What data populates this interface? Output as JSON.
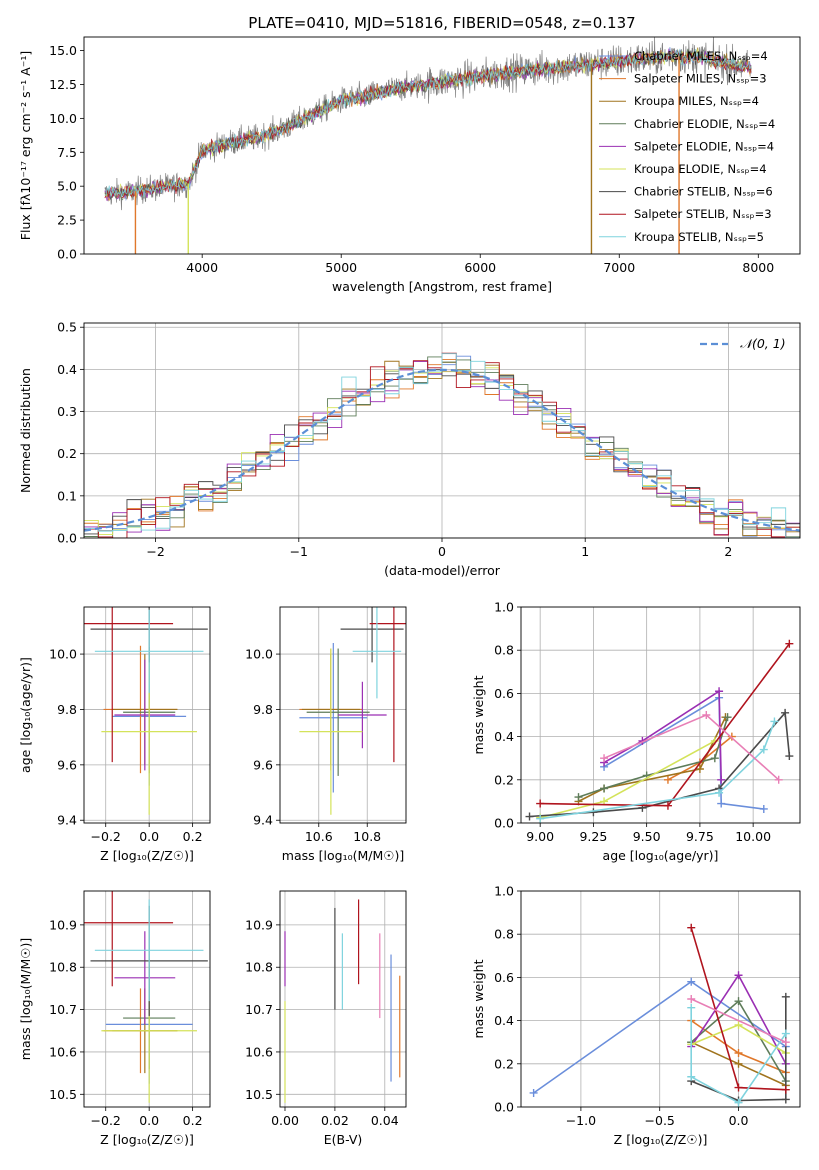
{
  "title": "PLATE=0410, MJD=51816, FIBERID=0548, z=0.137",
  "colors": [
    "#6a8edb",
    "#e0782b",
    "#a0741e",
    "#5e7c59",
    "#9a2fb3",
    "#d4e35a",
    "#4a4a4a",
    "#b0141e",
    "#7fd3de"
  ],
  "extra_colors": {
    "pink": "#e87fb6",
    "gray": "#7f7f7f",
    "dashed": "#5b8fd6"
  },
  "chart_data": [
    {
      "id": "spectrum",
      "type": "line",
      "xlabel": "wavelength [Angstrom, rest frame]",
      "ylabel": "Flux [fλ10⁻¹⁷ erg cm⁻² s⁻¹ A⁻¹]",
      "xlim": [
        3150,
        8300
      ],
      "ylim": [
        0,
        16
      ],
      "xticks": [
        4000,
        5000,
        6000,
        7000,
        8000
      ],
      "yticks": [
        0.0,
        2.5,
        5.0,
        7.5,
        10.0,
        12.5,
        15.0
      ],
      "grid": false,
      "legend_position": "top-right",
      "legend": [
        "Chabrier MILES, Nₛₛₚ=4",
        "Salpeter MILES, Nₛₛₚ=3",
        "Kroupa MILES, Nₛₛₚ=4",
        "Chabrier ELODIE, Nₛₛₚ=4",
        "Salpeter ELODIE, Nₛₛₚ=4",
        "Kroupa ELODIE, Nₛₛₚ=4",
        "Chabrier STELIB, Nₛₛₚ=6",
        "Salpeter STELIB, Nₛₛₚ=3",
        "Kroupa STELIB, Nₛₛₚ=5"
      ],
      "data_continuum": [
        [
          3300,
          4.4
        ],
        [
          3500,
          4.6
        ],
        [
          3700,
          4.9
        ],
        [
          3900,
          5.2
        ],
        [
          4000,
          7.6
        ],
        [
          4200,
          8.2
        ],
        [
          4400,
          8.6
        ],
        [
          4600,
          9.3
        ],
        [
          4800,
          10.3
        ],
        [
          5000,
          11.3
        ],
        [
          5200,
          11.7
        ],
        [
          5400,
          12.2
        ],
        [
          5600,
          12.5
        ],
        [
          5800,
          12.8
        ],
        [
          6000,
          13.1
        ],
        [
          6200,
          13.4
        ],
        [
          6400,
          13.6
        ],
        [
          6600,
          13.8
        ],
        [
          6800,
          14.0
        ],
        [
          7000,
          14.2
        ],
        [
          7200,
          14.4
        ],
        [
          7400,
          14.6
        ],
        [
          7600,
          14.5
        ],
        [
          7800,
          14.0
        ],
        [
          7950,
          13.7
        ]
      ],
      "vertical_drops": [
        {
          "x": 3520,
          "color_index": 1
        },
        {
          "x": 3900,
          "color_index": 5
        },
        {
          "x": 6800,
          "color_index": 2
        },
        {
          "x": 7430,
          "color_index": 1
        }
      ]
    },
    {
      "id": "residuals",
      "type": "histogram",
      "xlabel": "(data-model)/error",
      "ylabel": "Normed distribution",
      "xlim": [
        -2.5,
        2.5
      ],
      "ylim": [
        0,
        0.51
      ],
      "xticks": [
        -2,
        -1,
        0,
        1,
        2
      ],
      "xtick_labels": [
        "−2",
        "−1",
        "0",
        "1",
        "2"
      ],
      "yticks": [
        0.0,
        0.1,
        0.2,
        0.3,
        0.4,
        0.5
      ],
      "grid": true,
      "legend_position": "top-right",
      "reference_curve": {
        "name": "𝒩(0, 1)",
        "mean": 0,
        "sigma": 1
      },
      "bin_width": 0.1
    },
    {
      "id": "age-vs-Z",
      "type": "errorbar",
      "xlabel": "Z [log₁₀(Z/Z☉)]",
      "ylabel": "age  [log₁₀(age/yr)]",
      "xlim": [
        -0.3,
        0.28
      ],
      "ylim": [
        9.39,
        10.17
      ],
      "xticks": [
        -0.2,
        0.0,
        0.2
      ],
      "xtick_labels": [
        "−0.2",
        "0.0",
        "0.2"
      ],
      "yticks": [
        9.4,
        9.6,
        9.8,
        10.0
      ],
      "points": [
        {
          "x": 0.0,
          "xerr": 0.17,
          "y": 9.775,
          "yerr": 0.25,
          "c": 0
        },
        {
          "x": -0.04,
          "xerr": 0.17,
          "y": 9.8,
          "yerr": 0.23,
          "c": 1
        },
        {
          "x": -0.02,
          "xerr": 0.15,
          "y": 9.8,
          "yerr": 0.2,
          "c": 2
        },
        {
          "x": 0.0,
          "xerr": 0.12,
          "y": 9.79,
          "yerr": 0.22,
          "c": 3
        },
        {
          "x": -0.02,
          "xerr": 0.14,
          "y": 9.78,
          "yerr": 0.2,
          "c": 4
        },
        {
          "x": 0.0,
          "xerr": 0.22,
          "y": 9.72,
          "yerr": 0.3,
          "c": 5
        },
        {
          "x": 0.0,
          "xerr": 0.27,
          "y": 10.09,
          "yerr": 0.12,
          "c": 6
        },
        {
          "x": -0.17,
          "xerr": 0.28,
          "y": 10.11,
          "yerr": 0.5,
          "c": 7
        },
        {
          "x": 0.0,
          "xerr": 0.25,
          "y": 10.01,
          "yerr": 0.15,
          "c": 8
        }
      ]
    },
    {
      "id": "age-vs-mass",
      "type": "errorbar",
      "xlabel": "mass [log₁₀(M/M☉)]",
      "ylabel": "",
      "xlim": [
        10.44,
        10.96
      ],
      "ylim": [
        9.39,
        10.17
      ],
      "xticks": [
        10.6,
        10.8
      ],
      "yticks": [
        9.4,
        9.6,
        9.8,
        10.0
      ],
      "points": [
        {
          "x": 10.66,
          "xerr": 0.14,
          "y": 9.77,
          "yerr": 0.27,
          "c": 0
        },
        {
          "x": 10.65,
          "xerr": 0.13,
          "y": 9.8,
          "yerr": 0.22,
          "c": 1
        },
        {
          "x": 10.65,
          "xerr": 0.12,
          "y": 9.8,
          "yerr": 0.2,
          "c": 2
        },
        {
          "x": 10.68,
          "xerr": 0.13,
          "y": 9.79,
          "yerr": 0.23,
          "c": 3
        },
        {
          "x": 10.78,
          "xerr": 0.1,
          "y": 9.78,
          "yerr": 0.12,
          "c": 4
        },
        {
          "x": 10.65,
          "xerr": 0.13,
          "y": 9.72,
          "yerr": 0.3,
          "c": 5
        },
        {
          "x": 10.82,
          "xerr": 0.13,
          "y": 10.09,
          "yerr": 0.12,
          "c": 6
        },
        {
          "x": 10.91,
          "xerr": 0.1,
          "y": 10.11,
          "yerr": 0.5,
          "c": 7
        },
        {
          "x": 10.84,
          "xerr": 0.1,
          "y": 10.01,
          "yerr": 0.17,
          "c": 8
        }
      ]
    },
    {
      "id": "weight-vs-age",
      "type": "line",
      "xlabel": "age  [log₁₀(age/yr)]",
      "ylabel": "mass weight",
      "xlim": [
        8.91,
        10.22
      ],
      "ylim": [
        0,
        1.0
      ],
      "xticks": [
        9.0,
        9.25,
        9.5,
        9.75,
        10.0
      ],
      "yticks": [
        0.0,
        0.2,
        0.4,
        0.6,
        0.8,
        1.0
      ],
      "grid": true,
      "series": [
        {
          "c": 0,
          "x": [
            9.3,
            9.84,
            9.85,
            10.05
          ],
          "y": [
            0.26,
            0.58,
            0.09,
            0.065
          ]
        },
        {
          "c": 1,
          "x": [
            9.6,
            9.75,
            9.9
          ],
          "y": [
            0.2,
            0.28,
            0.4
          ]
        },
        {
          "c": 2,
          "x": [
            9.18,
            9.3,
            9.75,
            9.87
          ],
          "y": [
            0.1,
            0.16,
            0.25,
            0.49
          ]
        },
        {
          "c": 3,
          "x": [
            9.18,
            9.3,
            9.5,
            9.82,
            9.88
          ],
          "y": [
            0.12,
            0.16,
            0.22,
            0.3,
            0.49
          ]
        },
        {
          "c": 4,
          "x": [
            9.3,
            9.48,
            9.84,
            9.85
          ],
          "y": [
            0.28,
            0.38,
            0.61,
            0.2
          ]
        },
        {
          "c": 5,
          "x": [
            9.0,
            9.3,
            9.82
          ],
          "y": [
            0.025,
            0.1,
            0.38
          ]
        },
        {
          "c": 6,
          "x": [
            8.95,
            9.25,
            9.48,
            9.84,
            10.15,
            10.17
          ],
          "y": [
            0.03,
            0.05,
            0.07,
            0.16,
            0.51,
            0.31
          ]
        },
        {
          "c": 7,
          "x": [
            9.0,
            9.6,
            10.17
          ],
          "y": [
            0.09,
            0.08,
            0.83
          ]
        },
        {
          "c": 8,
          "x": [
            9.0,
            9.84,
            10.05,
            10.1
          ],
          "y": [
            0.02,
            0.14,
            0.34,
            0.47
          ]
        },
        {
          "c": "pink",
          "x": [
            9.3,
            9.78,
            10.12
          ],
          "y": [
            0.3,
            0.5,
            0.2
          ]
        }
      ]
    },
    {
      "id": "mass-vs-Z",
      "type": "errorbar",
      "xlabel": "Z [log₁₀(Z/Z☉)]",
      "ylabel": "mass [log₁₀(M/M☉)]",
      "xlim": [
        -0.3,
        0.28
      ],
      "ylim": [
        10.47,
        10.98
      ],
      "xticks": [
        -0.2,
        0.0,
        0.2
      ],
      "xtick_labels": [
        "−0.2",
        "0.0",
        "0.2"
      ],
      "yticks": [
        10.5,
        10.6,
        10.7,
        10.8,
        10.9
      ],
      "points": [
        {
          "x": 0.0,
          "xerr": 0.2,
          "y": 10.665,
          "yerr": 0.14,
          "c": 0
        },
        {
          "x": -0.04,
          "xerr": 0.17,
          "y": 10.65,
          "yerr": 0.1,
          "c": 1
        },
        {
          "x": -0.02,
          "xerr": 0.15,
          "y": 10.65,
          "yerr": 0.1,
          "c": 2
        },
        {
          "x": 0.0,
          "xerr": 0.12,
          "y": 10.68,
          "yerr": 0.12,
          "c": 3
        },
        {
          "x": -0.02,
          "xerr": 0.14,
          "y": 10.775,
          "yerr": 0.11,
          "c": 4
        },
        {
          "x": 0.0,
          "xerr": 0.22,
          "y": 10.65,
          "yerr": 0.17,
          "c": 5
        },
        {
          "x": 0.0,
          "xerr": 0.27,
          "y": 10.815,
          "yerr": 0.13,
          "c": 6
        },
        {
          "x": -0.17,
          "xerr": 0.28,
          "y": 10.905,
          "yerr": 0.15,
          "c": 7
        },
        {
          "x": 0.0,
          "xerr": 0.25,
          "y": 10.84,
          "yerr": 0.12,
          "c": 8
        }
      ]
    },
    {
      "id": "mass-vs-ebv",
      "type": "errorbar",
      "xlabel": "E(B-V)",
      "ylabel": "",
      "xlim": [
        -0.002,
        0.0485
      ],
      "ylim": [
        10.47,
        10.98
      ],
      "xticks": [
        0.0,
        0.02,
        0.04
      ],
      "xtick_labels": [
        "0.00",
        "0.02",
        "0.04"
      ],
      "yticks": [
        10.5,
        10.6,
        10.7,
        10.8,
        10.9
      ],
      "points": [
        {
          "x": 0.0,
          "y": 10.82,
          "yerr": 0.065,
          "c": 4
        },
        {
          "x": 0.0,
          "y": 10.6,
          "yerr": 0.12,
          "c": 5
        },
        {
          "x": 0.02,
          "y": 10.82,
          "yerr": 0.12,
          "c": 6
        },
        {
          "x": 0.023,
          "y": 10.79,
          "yerr": 0.09,
          "c": 8
        },
        {
          "x": 0.0295,
          "y": 10.86,
          "yerr": 0.1,
          "c": 7
        },
        {
          "x": 0.038,
          "y": 10.78,
          "yerr": 0.1,
          "c": "pink"
        },
        {
          "x": 0.0425,
          "y": 10.68,
          "yerr": 0.15,
          "c": 0
        },
        {
          "x": 0.046,
          "y": 10.66,
          "yerr": 0.12,
          "c": 1
        }
      ]
    },
    {
      "id": "weight-vs-Z",
      "type": "line",
      "xlabel": "Z [log₁₀(Z/Z☉)]",
      "ylabel": "mass weight",
      "xlim": [
        -1.38,
        0.39
      ],
      "ylim": [
        0,
        1.0
      ],
      "xticks": [
        -1.0,
        -0.5,
        0.0
      ],
      "xtick_labels": [
        "−1.0",
        "−0.5",
        "0.0"
      ],
      "yticks": [
        0.0,
        0.2,
        0.4,
        0.6,
        0.8,
        1.0
      ],
      "grid": true,
      "series": [
        {
          "c": 0,
          "x": [
            -1.3,
            -0.3,
            0.3
          ],
          "y": [
            0.065,
            0.58,
            0.28
          ]
        },
        {
          "c": 1,
          "x": [
            -0.3,
            0.0,
            0.3
          ],
          "y": [
            0.4,
            0.25,
            0.16
          ]
        },
        {
          "c": 2,
          "x": [
            -0.3,
            0.0,
            0.3
          ],
          "y": [
            0.3,
            0.2,
            0.1
          ]
        },
        {
          "c": 3,
          "x": [
            -0.3,
            0.0,
            0.3
          ],
          "y": [
            0.3,
            0.49,
            0.12
          ]
        },
        {
          "c": 4,
          "x": [
            -0.3,
            0.0,
            0.3
          ],
          "y": [
            0.28,
            0.61,
            0.2
          ]
        },
        {
          "c": 5,
          "x": [
            -0.3,
            0.0,
            0.3
          ],
          "y": [
            0.29,
            0.38,
            0.25
          ]
        },
        {
          "c": 6,
          "x": [
            -0.3,
            0.0,
            0.3,
            0.3
          ],
          "y": [
            0.12,
            0.03,
            0.035,
            0.51
          ]
        },
        {
          "c": 7,
          "x": [
            -0.3,
            0.0,
            0.3
          ],
          "y": [
            0.83,
            0.09,
            0.08
          ]
        },
        {
          "c": 8,
          "x": [
            -0.3,
            -0.3,
            0.0,
            0.3
          ],
          "y": [
            0.46,
            0.14,
            0.02,
            0.34
          ]
        },
        {
          "c": "pink",
          "x": [
            -0.3,
            0.3
          ],
          "y": [
            0.5,
            0.3
          ]
        }
      ]
    }
  ]
}
